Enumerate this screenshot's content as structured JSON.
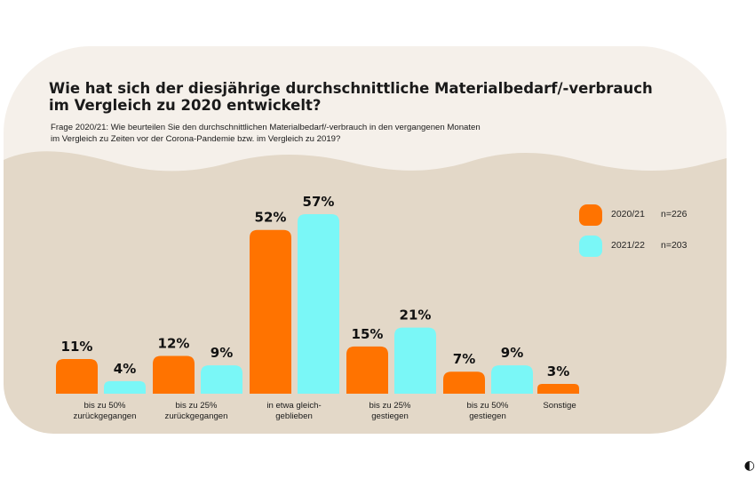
{
  "title": "Wie hat sich der diesjährige durchschnittliche Materialbedarf/-verbrauch im Vergleich zu 2020 entwickelt?",
  "subtitle_line1": "Frage 2020/21: Wie beurteilen Sie den durchschnittlichen Materialbedarf/-verbrauch in den vergangenen Monaten",
  "subtitle_line2": "im Vergleich zu Zeiten vor der Corona-Pandemie bzw. im Vergleich zu 2019?",
  "colors": {
    "series_2020": "#ff7300",
    "series_2021": "#7af7f7",
    "panel_light": "#f5f0ea",
    "panel_dark": "#e3d8c8"
  },
  "legend": [
    {
      "label": "2020/21",
      "n": "n=226",
      "color": "#ff7300"
    },
    {
      "label": "2021/22",
      "n": "n=203",
      "color": "#7af7f7"
    }
  ],
  "corner_icon": "partial-logo-icon",
  "chart_data": {
    "type": "bar",
    "title": "Wie hat sich der diesjährige durchschnittliche Materialbedarf/-verbrauch im Vergleich zu 2020 entwickelt?",
    "categories": [
      "bis zu 50%\nzurückgegangen",
      "bis zu 25%\nzurückgegangen",
      "in etwa gleich-\ngeblieben",
      "bis zu 25%\ngestiegen",
      "bis zu 50%\ngestiegen",
      "Sonstige"
    ],
    "series": [
      {
        "name": "2020/21",
        "n": "n=226",
        "color": "#ff7300",
        "values": [
          11,
          12,
          52,
          15,
          7,
          3
        ]
      },
      {
        "name": "2021/22",
        "n": "n=203",
        "color": "#7af7f7",
        "values": [
          4,
          9,
          57,
          21,
          9,
          null
        ]
      }
    ],
    "value_suffix": "%",
    "ylim": [
      0,
      57
    ],
    "grid": false,
    "legend_position": "right"
  }
}
